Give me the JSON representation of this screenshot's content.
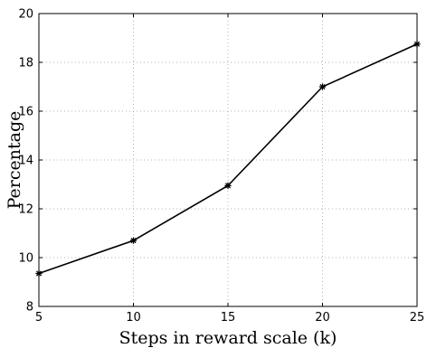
{
  "chart_data": {
    "type": "line",
    "title": "",
    "xlabel": "Steps in reward scale (k)",
    "ylabel": "Percentage",
    "xlim": [
      5,
      25
    ],
    "ylim": [
      8,
      20
    ],
    "xticks": [
      5,
      10,
      15,
      20,
      25
    ],
    "yticks": [
      8,
      10,
      12,
      14,
      16,
      18,
      20
    ],
    "grid": true,
    "x": [
      5,
      10,
      15,
      20,
      25
    ],
    "series": [
      {
        "values": [
          9.35,
          10.7,
          12.95,
          17.0,
          18.75
        ],
        "marker": "asterisk",
        "color": "#000000"
      }
    ]
  }
}
